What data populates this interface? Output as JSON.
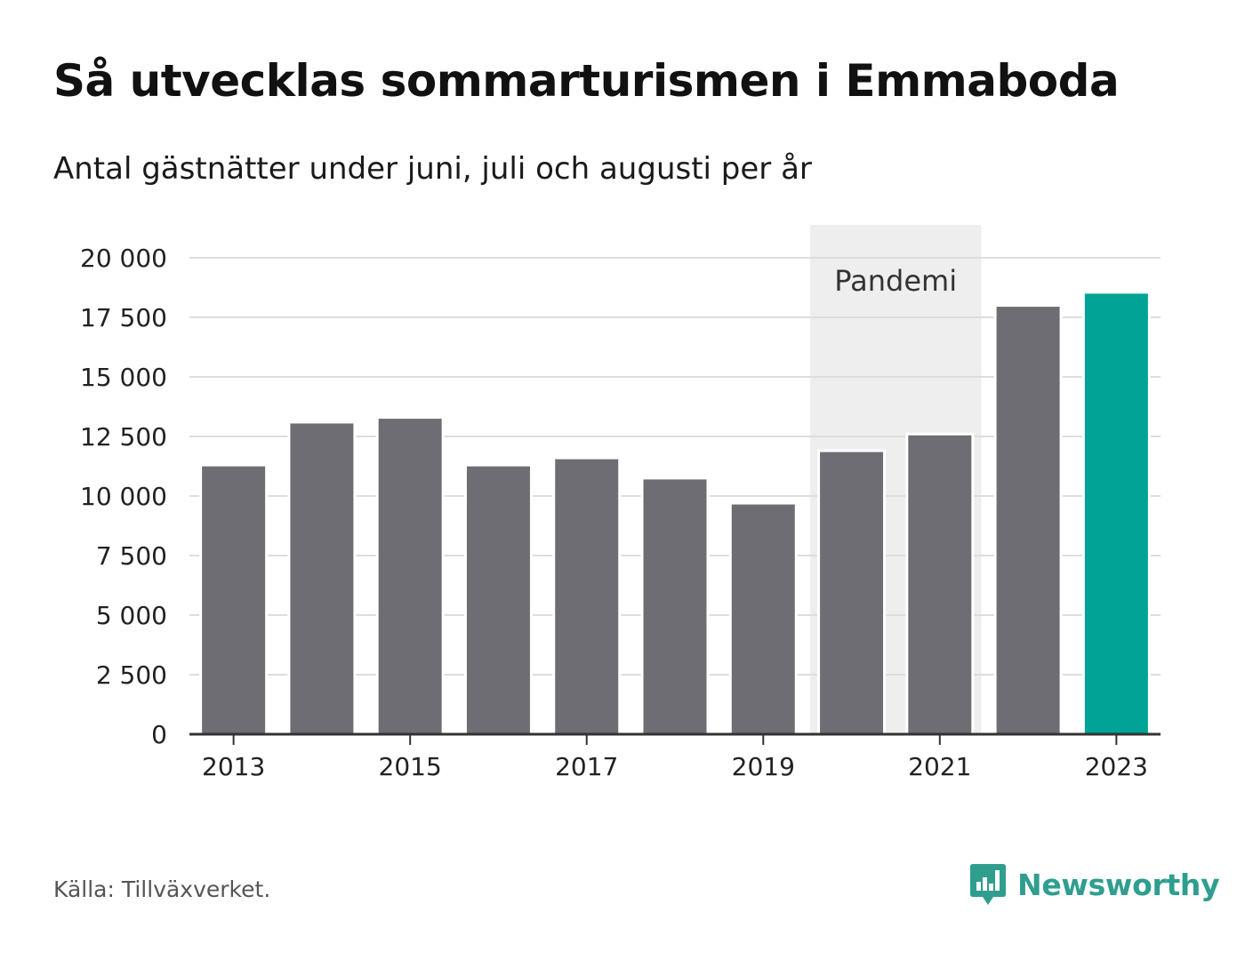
{
  "title": "Så utvecklas sommarturismen i Emmaboda",
  "subtitle": "Antal gästnätter under juni, juli och augusti per år",
  "source": "Källa: Tillväxverket.",
  "brand": {
    "name": "Newsworthy",
    "icon": "newsworthy-logo-icon",
    "color": "#2f9e8f"
  },
  "chart_data": {
    "type": "bar",
    "categories": [
      "2013",
      "2014",
      "2015",
      "2016",
      "2017",
      "2018",
      "2019",
      "2020",
      "2021",
      "2022",
      "2023"
    ],
    "values": [
      11300,
      13100,
      13300,
      11300,
      11600,
      10750,
      9700,
      11900,
      12600,
      18000,
      18550
    ],
    "ylim": [
      0,
      20000
    ],
    "yticks": [
      0,
      2500,
      5000,
      7500,
      10000,
      12500,
      15000,
      17500,
      20000
    ],
    "ytick_labels": [
      "0",
      "2 500",
      "5 000",
      "7 500",
      "10 000",
      "12 500",
      "15 000",
      "17 500",
      "20 000"
    ],
    "xtick_labels": [
      "2013",
      "2015",
      "2017",
      "2019",
      "2021",
      "2023"
    ],
    "highlight_band": {
      "label": "Pandemi",
      "from": "2020",
      "to": "2021",
      "color": "#eeeeee"
    },
    "colors": {
      "bar": "#6e6d74",
      "highlight": "#00a396",
      "grid": "#dddddd",
      "axis": "#333333"
    },
    "highlight_category": "2023",
    "grid": true
  }
}
